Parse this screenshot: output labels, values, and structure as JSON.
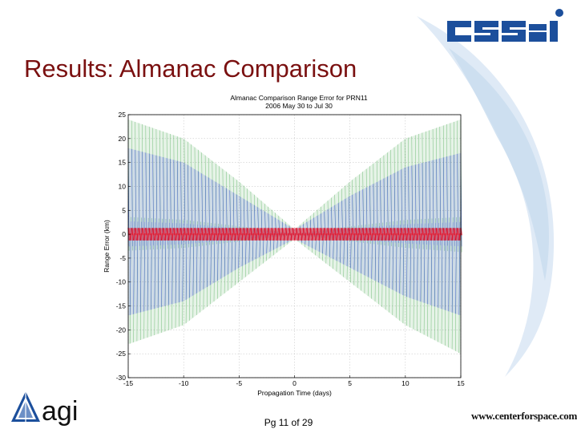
{
  "slide": {
    "title": "Results: Almanac Comparison",
    "page_number": "Pg 11 of 29",
    "website": "www.centerforspace.com",
    "logo_left_text": "agi"
  },
  "colors": {
    "title": "#7a1010",
    "swoosh": "#c8dcef",
    "cssi_blue": "#1c4f9c",
    "series_green": "#2e9e3a",
    "series_blue": "#1f2fe0",
    "series_red": "#e0102a"
  },
  "chart_data": {
    "type": "scatter",
    "title": "Almanac Comparison Range Error for PRN11",
    "subtitle": "2006 May 30 to Jul 30",
    "xlabel": "Propagation Time (days)",
    "ylabel": "Range Error (km)",
    "xlim": [
      -15,
      15
    ],
    "ylim": [
      -30,
      25
    ],
    "xticks": [
      -15,
      -10,
      -5,
      0,
      5,
      10,
      15
    ],
    "yticks": [
      25,
      20,
      15,
      10,
      5,
      0,
      -5,
      -10,
      -15,
      -20,
      -25,
      -30
    ],
    "grid": true,
    "legend": "none",
    "series": [
      {
        "color": "#2e9e3a",
        "envelope": {
          "x": [
            -15,
            -10,
            -5,
            0,
            5,
            10,
            15
          ],
          "upper": [
            24,
            20,
            11,
            1,
            11,
            20,
            24
          ],
          "lower": [
            -23,
            -19,
            -10,
            -1,
            -10,
            -19,
            -25
          ]
        }
      },
      {
        "color": "#1f2fe0",
        "envelope": {
          "x": [
            -15,
            -10,
            -5,
            0,
            5,
            10,
            15
          ],
          "upper": [
            18,
            15,
            8,
            1,
            8,
            14,
            17
          ],
          "lower": [
            -17,
            -14,
            -7,
            -1,
            -7,
            -13,
            -17
          ]
        }
      },
      {
        "color": "#e0102a",
        "envelope": {
          "x": [
            -15,
            15
          ],
          "upper": [
            1.3,
            1.3
          ],
          "lower": [
            -1.3,
            -1.3
          ]
        }
      }
    ]
  }
}
